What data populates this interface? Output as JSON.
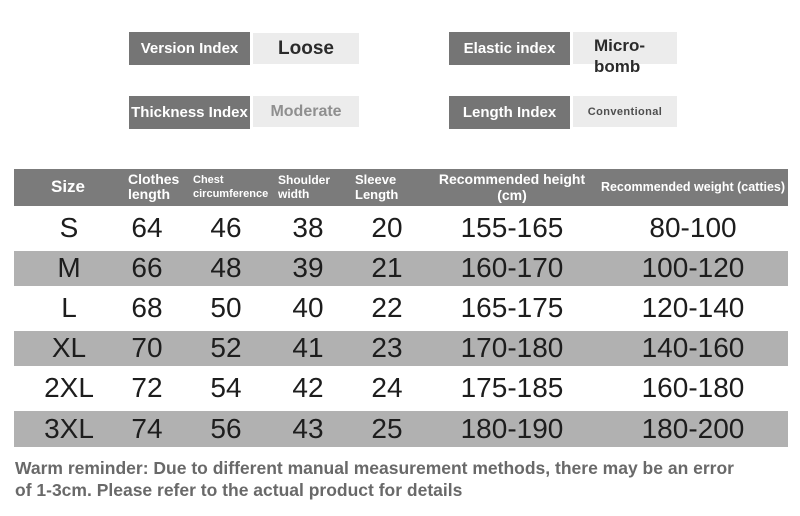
{
  "indices": [
    {
      "id": "version",
      "label": "Version Index",
      "value": "Loose"
    },
    {
      "id": "elastic",
      "label": "Elastic index",
      "value": "Micro-bomb"
    },
    {
      "id": "thickness",
      "label": "Thickness Index",
      "value": "Moderate"
    },
    {
      "id": "length",
      "label": "Length Index",
      "value": "Conventional"
    }
  ],
  "chart_data": {
    "type": "table",
    "title": "Garment size chart",
    "columns": [
      "Size",
      "Clothes length",
      "Chest circumference",
      "Shoulder width",
      "Sleeve Length",
      "Recommended height (cm)",
      "Recommended weight (catties)"
    ],
    "rows": [
      [
        "S",
        "64",
        "46",
        "38",
        "20",
        "155-165",
        "80-100"
      ],
      [
        "M",
        "66",
        "48",
        "39",
        "21",
        "160-170",
        "100-120"
      ],
      [
        "L",
        "68",
        "50",
        "40",
        "22",
        "165-175",
        "120-140"
      ],
      [
        "XL",
        "70",
        "52",
        "41",
        "23",
        "170-180",
        "140-160"
      ],
      [
        "2XL",
        "72",
        "54",
        "42",
        "24",
        "175-185",
        "160-180"
      ],
      [
        "3XL",
        "74",
        "56",
        "43",
        "25",
        "180-190",
        "180-200"
      ]
    ],
    "shaded_rows": [
      1,
      3,
      5
    ]
  },
  "reminder_lines": [
    "Warm reminder: Due to different manual measurement methods, there may be an error",
    "of 1-3cm. Please refer to the actual product for details"
  ],
  "colors": {
    "badge_background": "#757575",
    "badge_value_background": "#ececec",
    "table_header_background": "#7b7b7b",
    "table_row_shade": "#b1b1b1",
    "data_text": "#1d1d1d",
    "reminder_text": "#696969"
  }
}
